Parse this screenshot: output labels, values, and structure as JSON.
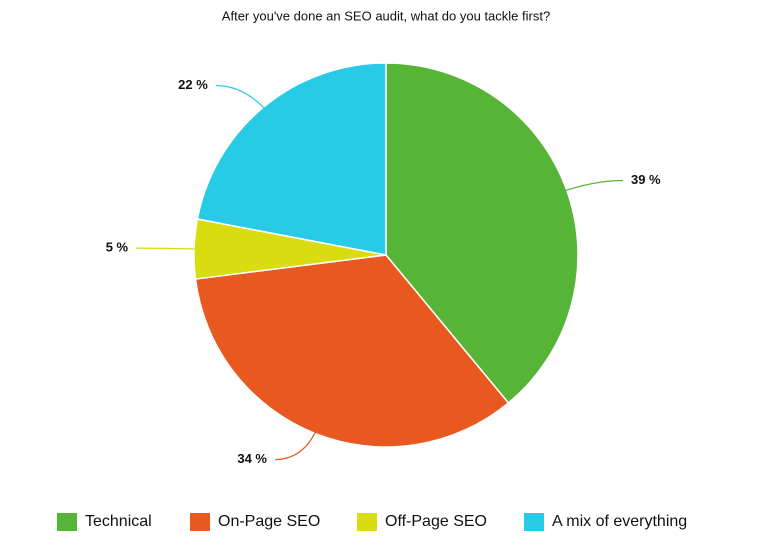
{
  "chart_data": {
    "type": "pie",
    "title": "After you've done an SEO audit, what do you tackle first?",
    "categories": [
      "Technical",
      "On-Page SEO",
      "Off-Page SEO",
      "A mix of everything"
    ],
    "values": [
      39,
      34,
      5,
      22
    ],
    "value_labels": [
      "39 %",
      "34 %",
      "5 %",
      "22 %"
    ],
    "colors": [
      "#56b436",
      "#e8581f",
      "#d9dc0e",
      "#27cbe5"
    ],
    "legend": "bottom"
  }
}
